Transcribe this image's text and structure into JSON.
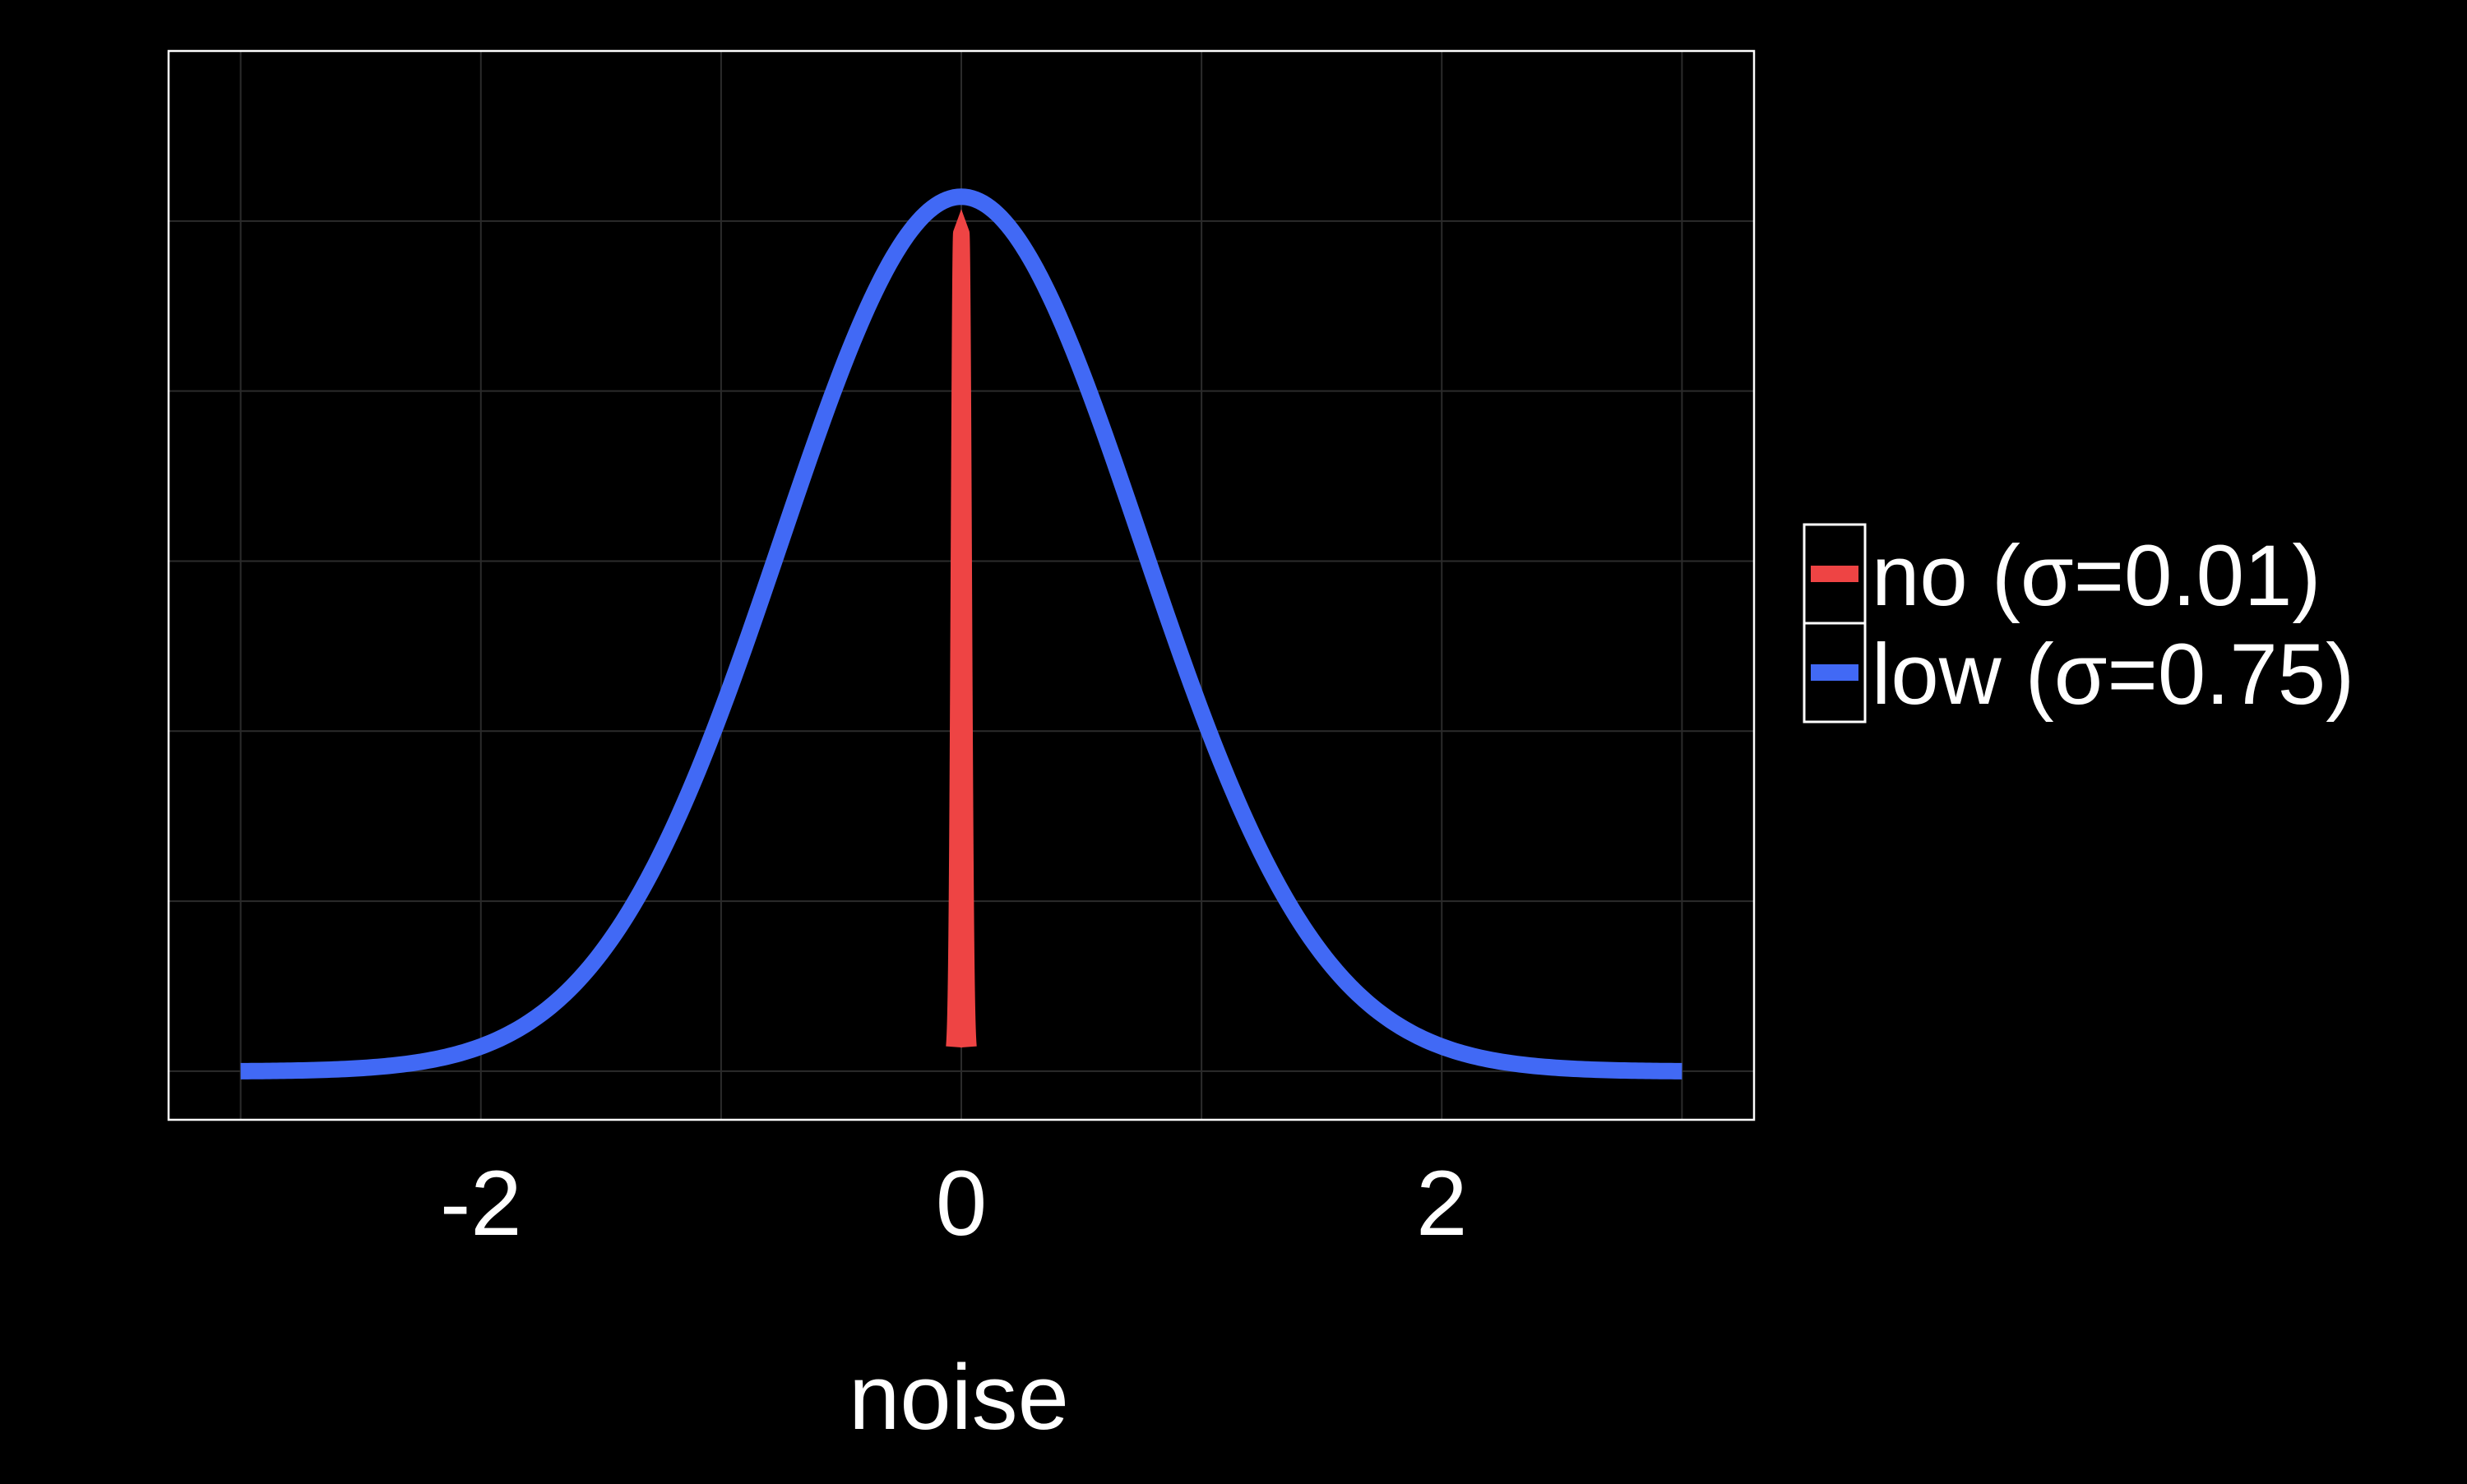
{
  "chart_data": {
    "type": "line",
    "title": "",
    "xlabel": "noise",
    "ylabel": "",
    "xlim": [
      -3.3,
      3.3
    ],
    "ylim": [
      -0.2,
      4.2
    ],
    "x_ticks": [
      -2,
      0,
      2
    ],
    "x_tick_labels": [
      "-2",
      "0",
      "2"
    ],
    "grid": true,
    "legend_position": "right",
    "series": [
      {
        "name": "no (σ=0.01)",
        "color": "#ee4444",
        "distribution": "normal",
        "mu": 0,
        "sigma": 0.01,
        "x_range": [
          -0.03,
          0.03
        ],
        "y_range": [
          0.1,
          3.45
        ]
      },
      {
        "name": "low (σ=0.75)",
        "color": "#4169f5",
        "distribution": "normal",
        "mu": 0,
        "sigma": 0.75,
        "x_range": [
          -3,
          3
        ],
        "y_range": [
          0,
          3.6
        ]
      }
    ]
  }
}
